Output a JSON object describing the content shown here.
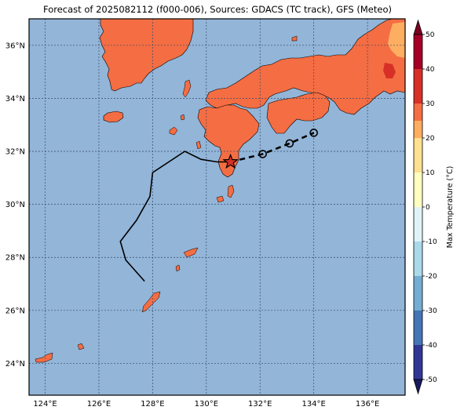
{
  "title": "Forecast of 2025082112 (f000-006), Sources: GDACS (TC track), GFS (Meteo)",
  "lat_ticks": [
    {
      "value": 24,
      "label": "24°N"
    },
    {
      "value": 26,
      "label": "26°N"
    },
    {
      "value": 28,
      "label": "28°N"
    },
    {
      "value": 30,
      "label": "30°N"
    },
    {
      "value": 32,
      "label": "32°N"
    },
    {
      "value": 34,
      "label": "34°N"
    },
    {
      "value": 36,
      "label": "36°N"
    }
  ],
  "lon_ticks": [
    {
      "value": 124,
      "label": "124°E"
    },
    {
      "value": 126,
      "label": "126°E"
    },
    {
      "value": 128,
      "label": "128°E"
    },
    {
      "value": 130,
      "label": "130°E"
    },
    {
      "value": 132,
      "label": "132°E"
    },
    {
      "value": 134,
      "label": "134°E"
    },
    {
      "value": 136,
      "label": "136°E"
    }
  ],
  "map_extent": {
    "lon": [
      123.4,
      137.4
    ],
    "lat": [
      22.8,
      37.0
    ]
  },
  "colors": {
    "ocean": "#92b5d8",
    "land": "#f46d43",
    "land_warm": "#fdae61",
    "land_hot": "#d73027",
    "track": "#000000",
    "grid": "#3a4a6a"
  },
  "colorbar": {
    "label": "Max Temperature (°C)",
    "ticks": [
      "-50",
      "-40",
      "-30",
      "-20",
      "-10",
      "0",
      "10",
      "20",
      "30",
      "40",
      "50"
    ],
    "bins": [
      {
        "from": -50,
        "to": -40,
        "color": "#313695"
      },
      {
        "from": -40,
        "to": -30,
        "color": "#4575b4"
      },
      {
        "from": -30,
        "to": -20,
        "color": "#74add1"
      },
      {
        "from": -20,
        "to": -10,
        "color": "#abd9e9"
      },
      {
        "from": -10,
        "to": 0,
        "color": "#e0f3f8"
      },
      {
        "from": 0,
        "to": 10,
        "color": "#ffffbf"
      },
      {
        "from": 10,
        "to": 20,
        "color": "#fee090"
      },
      {
        "from": 20,
        "to": 25,
        "color": "#fdae61"
      },
      {
        "from": 25,
        "to": 30,
        "color": "#f46d43"
      },
      {
        "from": 30,
        "to": 40,
        "color": "#d73027"
      },
      {
        "from": 40,
        "to": 50,
        "color": "#a50026"
      }
    ],
    "extend_low_color": "#1a1a5e",
    "extend_high_color": "#7a0020"
  },
  "tc_track": {
    "past": [
      [
        127.7,
        27.1
      ],
      [
        127.0,
        27.9
      ],
      [
        126.8,
        28.6
      ],
      [
        127.4,
        29.4
      ],
      [
        127.9,
        30.3
      ],
      [
        128.0,
        31.2
      ],
      [
        129.2,
        32.0
      ],
      [
        129.8,
        31.7
      ],
      [
        130.4,
        31.6
      ],
      [
        130.9,
        31.6
      ]
    ],
    "current": [
      130.9,
      31.6
    ],
    "forecast": [
      [
        130.9,
        31.6
      ],
      [
        132.1,
        31.9
      ],
      [
        133.1,
        32.3
      ],
      [
        134.0,
        32.7
      ]
    ],
    "forecast_points": [
      [
        132.1,
        31.9
      ],
      [
        133.1,
        32.3
      ],
      [
        134.0,
        32.7
      ]
    ]
  }
}
